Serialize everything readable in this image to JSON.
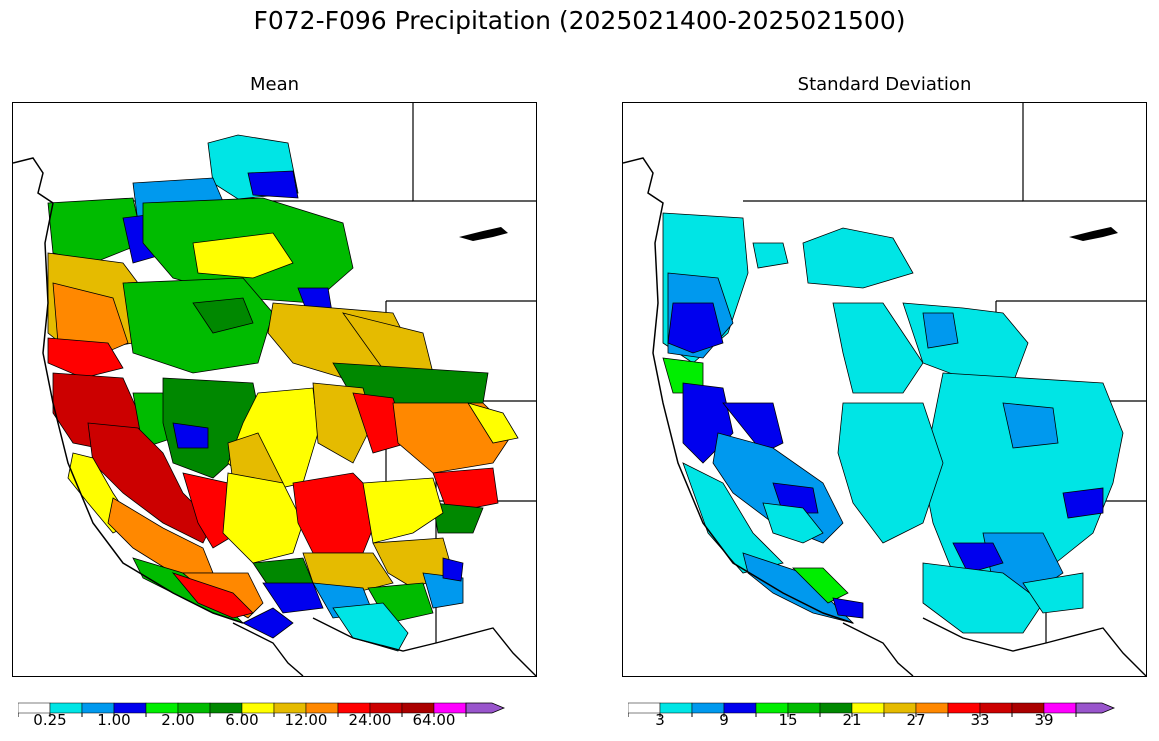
{
  "title": "F072-F096 Precipitation (2025021400-2025021500)",
  "panels": [
    {
      "name": "mean",
      "subtitle": "Mean"
    },
    {
      "name": "std",
      "subtitle": "Standard Deviation"
    }
  ],
  "colorbar_colors": [
    "#ffffff",
    "#00e5e5",
    "#0099ee",
    "#0000ee",
    "#00ee00",
    "#00bb00",
    "#008800",
    "#ffff00",
    "#e5bb00",
    "#ff8800",
    "#ff0000",
    "#cc0000",
    "#aa0000",
    "#ff00ff",
    "#9955cc"
  ],
  "colorbars": {
    "mean": {
      "tick_labels": [
        "0.25",
        "1.00",
        "2.00",
        "6.00",
        "12.00",
        "24.00",
        "64.00"
      ]
    },
    "std": {
      "tick_labels": [
        "3",
        "9",
        "15",
        "21",
        "27",
        "33",
        "39"
      ]
    }
  }
}
